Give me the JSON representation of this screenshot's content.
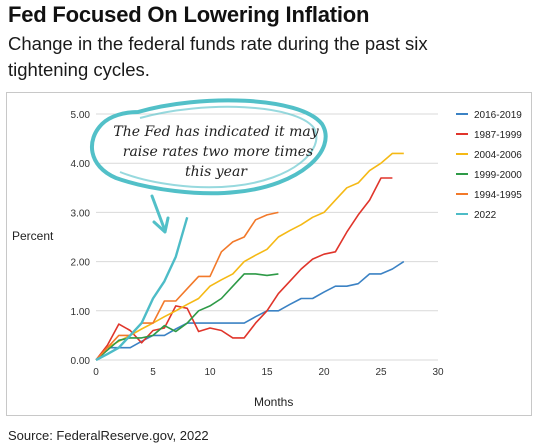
{
  "header": {
    "title": "Fed Focused On Lowering Inflation",
    "subtitle": "Change in the federal funds rate during the past six tightening cycles."
  },
  "footer": {
    "source": "Source: FederalReserve.gov, 2022"
  },
  "annotation": {
    "lines": [
      "The Fed has indicated it may",
      "raise rates two more times",
      "this year"
    ]
  },
  "chart_data": {
    "type": "line",
    "xlabel": "Months",
    "ylabel": "Percent",
    "xlim": [
      0,
      30
    ],
    "ylim": [
      0,
      5
    ],
    "x_ticks": [
      "0",
      "5",
      "10",
      "15",
      "20",
      "25",
      "30"
    ],
    "y_ticks": [
      "0.00",
      "1.00",
      "2.00",
      "3.00",
      "4.00",
      "5.00"
    ],
    "grid": "horizontal",
    "legend_position": "right",
    "series": [
      {
        "name": "2016-2019",
        "color": "#3b82c4",
        "x": [
          0,
          1,
          2,
          3,
          4,
          5,
          6,
          7,
          8,
          9,
          10,
          11,
          12,
          13,
          14,
          15,
          16,
          17,
          18,
          19,
          20,
          21,
          22,
          23,
          24,
          25,
          26,
          27
        ],
        "y": [
          0,
          0.25,
          0.25,
          0.25,
          0.38,
          0.5,
          0.5,
          0.63,
          0.75,
          0.75,
          0.75,
          0.75,
          0.75,
          0.75,
          0.88,
          1.0,
          1.0,
          1.13,
          1.25,
          1.25,
          1.38,
          1.5,
          1.5,
          1.55,
          1.75,
          1.75,
          1.85,
          2.0
        ]
      },
      {
        "name": "1987-1999",
        "color": "#e0352b",
        "x": [
          0,
          1,
          2,
          3,
          4,
          5,
          6,
          7,
          8,
          9,
          10,
          11,
          12,
          13,
          14,
          15,
          16,
          17,
          18,
          19,
          20,
          21,
          22,
          23,
          24,
          25,
          26
        ],
        "y": [
          0,
          0.3,
          0.73,
          0.6,
          0.35,
          0.6,
          0.65,
          1.1,
          1.05,
          0.58,
          0.65,
          0.6,
          0.45,
          0.45,
          0.75,
          1.0,
          1.35,
          1.6,
          1.85,
          2.05,
          2.15,
          2.2,
          2.6,
          2.95,
          3.25,
          3.7,
          3.7
        ]
      },
      {
        "name": "2004-2006",
        "color": "#f5b915",
        "x": [
          0,
          1,
          2,
          3,
          4,
          5,
          6,
          7,
          8,
          9,
          10,
          11,
          12,
          13,
          14,
          15,
          16,
          17,
          18,
          19,
          20,
          21,
          22,
          23,
          24,
          25,
          26,
          27
        ],
        "y": [
          0,
          0.25,
          0.38,
          0.5,
          0.63,
          0.75,
          0.88,
          1.0,
          1.13,
          1.25,
          1.5,
          1.63,
          1.75,
          2.0,
          2.13,
          2.25,
          2.5,
          2.63,
          2.75,
          2.9,
          3.0,
          3.25,
          3.5,
          3.6,
          3.85,
          4.0,
          4.2,
          4.2
        ]
      },
      {
        "name": "1999-2000",
        "color": "#2e9a47",
        "x": [
          0,
          1,
          2,
          3,
          4,
          5,
          6,
          7,
          8,
          9,
          10,
          11,
          12,
          13,
          14,
          15,
          16
        ],
        "y": [
          0,
          0.2,
          0.4,
          0.45,
          0.45,
          0.5,
          0.7,
          0.58,
          0.75,
          1.0,
          1.1,
          1.25,
          1.5,
          1.75,
          1.75,
          1.72,
          1.75
        ]
      },
      {
        "name": "1994-1995",
        "color": "#f2792a",
        "x": [
          0,
          1,
          2,
          3,
          4,
          5,
          6,
          7,
          8,
          9,
          10,
          11,
          12,
          13,
          14,
          15,
          16
        ],
        "y": [
          0,
          0.25,
          0.5,
          0.5,
          0.75,
          0.75,
          1.2,
          1.2,
          1.45,
          1.7,
          1.7,
          2.2,
          2.4,
          2.5,
          2.85,
          2.95,
          3.0
        ]
      },
      {
        "name": "2022",
        "color": "#4dbcc7",
        "x": [
          0,
          1,
          2,
          3,
          4,
          5,
          6,
          7,
          8
        ],
        "y": [
          0,
          0.12,
          0.25,
          0.5,
          0.75,
          1.25,
          1.6,
          2.1,
          2.9
        ]
      }
    ]
  }
}
